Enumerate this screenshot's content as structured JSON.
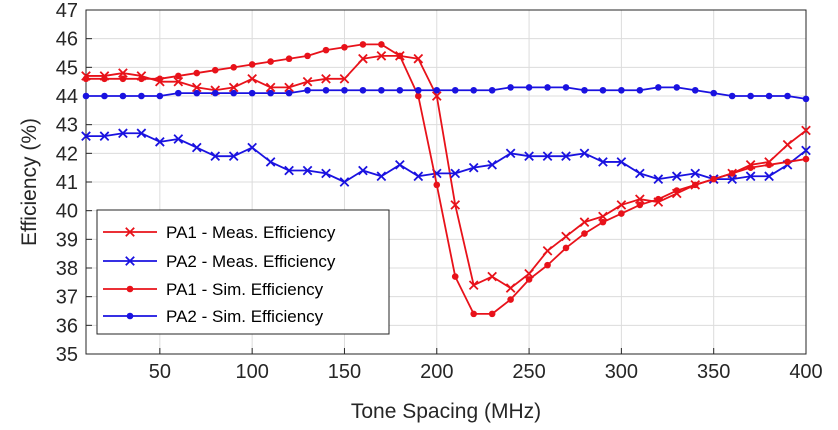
{
  "chart_data": {
    "type": "line",
    "title": "",
    "xlabel": "Tone Spacing (MHz)",
    "ylabel": "Efficiency (%)",
    "xlim": [
      10,
      400
    ],
    "ylim": [
      35,
      47
    ],
    "xticks": [
      50,
      100,
      150,
      200,
      250,
      300,
      350,
      400
    ],
    "yticks": [
      35,
      36,
      37,
      38,
      39,
      40,
      41,
      42,
      43,
      44,
      45,
      46,
      47
    ],
    "grid": true,
    "legend_position": "bottom-left",
    "x": [
      10,
      20,
      30,
      40,
      50,
      60,
      70,
      80,
      90,
      100,
      110,
      120,
      130,
      140,
      150,
      160,
      170,
      180,
      190,
      200,
      210,
      220,
      230,
      240,
      250,
      260,
      270,
      280,
      290,
      300,
      310,
      320,
      330,
      340,
      350,
      360,
      370,
      380,
      390,
      400
    ],
    "series": [
      {
        "name": "PA1 - Meas. Efficiency",
        "color": "#e8121a",
        "marker": "x",
        "values": [
          44.7,
          44.7,
          44.8,
          44.7,
          44.5,
          44.5,
          44.3,
          44.2,
          44.3,
          44.6,
          44.3,
          44.3,
          44.5,
          44.6,
          44.6,
          45.3,
          45.4,
          45.4,
          45.3,
          44.0,
          40.2,
          37.4,
          37.7,
          37.3,
          37.8,
          38.6,
          39.1,
          39.6,
          39.8,
          40.2,
          40.4,
          40.3,
          40.6,
          40.9,
          41.1,
          41.3,
          41.6,
          41.7,
          42.3,
          42.8
        ]
      },
      {
        "name": "PA2 - Meas. Efficiency",
        "color": "#1a12e0",
        "marker": "x",
        "values": [
          42.6,
          42.6,
          42.7,
          42.7,
          42.4,
          42.5,
          42.2,
          41.9,
          41.9,
          42.2,
          41.7,
          41.4,
          41.4,
          41.3,
          41.0,
          41.4,
          41.2,
          41.6,
          41.2,
          41.3,
          41.3,
          41.5,
          41.6,
          42.0,
          41.9,
          41.9,
          41.9,
          42.0,
          41.7,
          41.7,
          41.3,
          41.1,
          41.2,
          41.3,
          41.1,
          41.1,
          41.2,
          41.2,
          41.6,
          42.1
        ]
      },
      {
        "name": "PA1 - Sim. Efficiency",
        "color": "#e8121a",
        "marker": "dot",
        "values": [
          44.6,
          44.6,
          44.6,
          44.6,
          44.6,
          44.7,
          44.8,
          44.9,
          45.0,
          45.1,
          45.2,
          45.3,
          45.4,
          45.6,
          45.7,
          45.8,
          45.8,
          45.4,
          44.0,
          40.9,
          37.7,
          36.4,
          36.4,
          36.9,
          37.6,
          38.1,
          38.7,
          39.2,
          39.6,
          39.9,
          40.2,
          40.4,
          40.7,
          40.9,
          41.1,
          41.3,
          41.5,
          41.6,
          41.7,
          41.8
        ]
      },
      {
        "name": "PA2 - Sim. Efficiency",
        "color": "#1a12e0",
        "marker": "dot",
        "values": [
          44.0,
          44.0,
          44.0,
          44.0,
          44.0,
          44.1,
          44.1,
          44.1,
          44.1,
          44.1,
          44.1,
          44.1,
          44.2,
          44.2,
          44.2,
          44.2,
          44.2,
          44.2,
          44.2,
          44.2,
          44.2,
          44.2,
          44.2,
          44.3,
          44.3,
          44.3,
          44.3,
          44.2,
          44.2,
          44.2,
          44.2,
          44.3,
          44.3,
          44.2,
          44.1,
          44.0,
          44.0,
          44.0,
          44.0,
          43.9
        ]
      }
    ]
  }
}
